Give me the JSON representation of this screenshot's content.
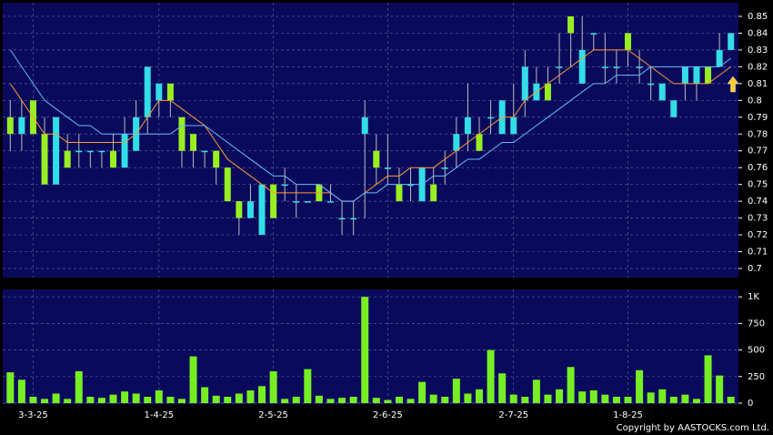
{
  "chart_data": {
    "type": "candlestick",
    "categories": [
      null,
      null,
      "3-3-25",
      null,
      null,
      null,
      null,
      null,
      null,
      null,
      null,
      null,
      null,
      "1-4-25",
      null,
      null,
      null,
      null,
      null,
      null,
      null,
      null,
      null,
      "2-5-25",
      null,
      null,
      null,
      null,
      null,
      null,
      null,
      null,
      null,
      "2-6-25",
      null,
      null,
      null,
      null,
      null,
      null,
      null,
      null,
      null,
      null,
      "2-7-25",
      null,
      null,
      null,
      null,
      null,
      null,
      null,
      null,
      null,
      "1-8-25",
      null,
      null,
      null,
      null,
      null,
      null,
      null,
      null,
      null
    ],
    "open": [
      0.79,
      0.78,
      0.8,
      0.78,
      0.75,
      0.77,
      0.77,
      0.77,
      0.77,
      0.77,
      0.76,
      0.77,
      0.79,
      0.8,
      0.81,
      0.79,
      0.78,
      0.77,
      0.77,
      0.76,
      0.74,
      0.73,
      0.72,
      0.75,
      0.75,
      0.74,
      0.74,
      0.75,
      0.74,
      0.73,
      0.73,
      0.78,
      0.77,
      0.76,
      0.75,
      0.75,
      0.74,
      0.75,
      0.76,
      0.77,
      0.78,
      0.78,
      0.79,
      0.78,
      0.78,
      0.8,
      0.8,
      0.81,
      0.82,
      0.85,
      0.81,
      0.84,
      0.82,
      0.82,
      0.84,
      0.82,
      0.81,
      0.8,
      0.79,
      0.81,
      0.81,
      0.82,
      0.82,
      0.83
    ],
    "high": [
      0.8,
      0.8,
      0.8,
      0.79,
      0.79,
      0.78,
      0.78,
      0.77,
      0.77,
      0.78,
      0.79,
      0.8,
      0.82,
      0.81,
      0.81,
      0.79,
      0.78,
      0.77,
      0.77,
      0.76,
      0.74,
      0.75,
      0.75,
      0.75,
      0.76,
      0.75,
      0.74,
      0.75,
      0.75,
      0.74,
      0.74,
      0.8,
      0.78,
      0.78,
      0.76,
      0.76,
      0.76,
      0.76,
      0.77,
      0.79,
      0.81,
      0.79,
      0.8,
      0.8,
      0.81,
      0.83,
      0.82,
      0.82,
      0.84,
      0.85,
      0.85,
      0.84,
      0.84,
      0.83,
      0.84,
      0.83,
      0.82,
      0.81,
      0.8,
      0.82,
      0.82,
      0.82,
      0.84,
      0.84
    ],
    "low": [
      0.77,
      0.77,
      0.78,
      0.75,
      0.75,
      0.76,
      0.76,
      0.76,
      0.76,
      0.76,
      0.76,
      0.77,
      0.78,
      0.79,
      0.79,
      0.76,
      0.76,
      0.76,
      0.75,
      0.74,
      0.72,
      0.73,
      0.72,
      0.73,
      0.74,
      0.73,
      0.74,
      0.74,
      0.74,
      0.72,
      0.72,
      0.73,
      0.75,
      0.75,
      0.74,
      0.74,
      0.74,
      0.74,
      0.75,
      0.76,
      0.77,
      0.77,
      0.78,
      0.78,
      0.78,
      0.79,
      0.8,
      0.8,
      0.81,
      0.82,
      0.81,
      0.83,
      0.81,
      0.81,
      0.82,
      0.81,
      0.8,
      0.8,
      0.79,
      0.8,
      0.8,
      0.81,
      0.82,
      0.83
    ],
    "close": [
      0.78,
      0.79,
      0.78,
      0.75,
      0.79,
      0.76,
      0.77,
      0.77,
      0.77,
      0.76,
      0.78,
      0.79,
      0.82,
      0.81,
      0.8,
      0.77,
      0.77,
      0.77,
      0.76,
      0.74,
      0.73,
      0.74,
      0.75,
      0.73,
      0.75,
      0.74,
      0.74,
      0.74,
      0.74,
      0.73,
      0.73,
      0.79,
      0.76,
      0.76,
      0.74,
      0.75,
      0.76,
      0.74,
      0.76,
      0.78,
      0.79,
      0.77,
      0.79,
      0.8,
      0.79,
      0.82,
      0.81,
      0.8,
      0.82,
      0.84,
      0.83,
      0.84,
      0.82,
      0.82,
      0.83,
      0.82,
      0.81,
      0.81,
      0.8,
      0.82,
      0.82,
      0.81,
      0.83,
      0.84
    ],
    "up_color": "#33dde8",
    "down_color": "#99ee22",
    "ylim": [
      0.6946,
      0.8581
    ],
    "yticks": [
      0.7,
      0.71,
      0.72,
      0.73,
      0.74,
      0.75,
      0.76,
      0.77,
      0.78,
      0.79,
      0.8,
      0.81,
      0.82,
      0.83,
      0.84,
      0.85
    ],
    "grid": true,
    "moving_averages": [
      {
        "color": "#ff9933",
        "values": [
          0.81,
          0.8,
          0.79,
          0.78,
          0.78,
          0.775,
          0.775,
          0.775,
          0.775,
          0.775,
          0.775,
          0.78,
          0.79,
          0.8,
          0.8,
          0.795,
          0.79,
          0.785,
          0.775,
          0.765,
          0.76,
          0.755,
          0.75,
          0.745,
          0.745,
          0.745,
          0.745,
          0.745,
          0.745,
          0.74,
          0.74,
          0.745,
          0.75,
          0.755,
          0.755,
          0.76,
          0.76,
          0.76,
          0.765,
          0.77,
          0.775,
          0.78,
          0.785,
          0.79,
          0.79,
          0.8,
          0.805,
          0.81,
          0.815,
          0.82,
          0.825,
          0.83,
          0.83,
          0.83,
          0.83,
          0.825,
          0.82,
          0.815,
          0.81,
          0.81,
          0.81,
          0.81,
          0.815,
          0.82
        ]
      },
      {
        "color": "#66bbff",
        "values": [
          0.83,
          0.82,
          0.81,
          0.8,
          0.795,
          0.79,
          0.785,
          0.785,
          0.78,
          0.78,
          0.78,
          0.78,
          0.78,
          0.78,
          0.78,
          0.785,
          0.785,
          0.785,
          0.78,
          0.775,
          0.77,
          0.765,
          0.76,
          0.755,
          0.755,
          0.75,
          0.75,
          0.75,
          0.745,
          0.74,
          0.74,
          0.745,
          0.745,
          0.75,
          0.75,
          0.75,
          0.75,
          0.755,
          0.755,
          0.76,
          0.765,
          0.765,
          0.77,
          0.775,
          0.775,
          0.78,
          0.785,
          0.79,
          0.795,
          0.8,
          0.805,
          0.81,
          0.81,
          0.815,
          0.815,
          0.815,
          0.82,
          0.82,
          0.82,
          0.82,
          0.82,
          0.82,
          0.82,
          0.825
        ]
      }
    ],
    "volume": {
      "color": "#77ee22",
      "values": [
        290,
        220,
        60,
        40,
        90,
        40,
        300,
        60,
        50,
        80,
        110,
        90,
        60,
        120,
        60,
        40,
        440,
        150,
        70,
        60,
        90,
        120,
        160,
        300,
        40,
        60,
        320,
        70,
        40,
        50,
        60,
        1000,
        50,
        30,
        60,
        40,
        200,
        80,
        60,
        230,
        90,
        130,
        500,
        280,
        80,
        60,
        220,
        80,
        130,
        340,
        110,
        120,
        80,
        60,
        60,
        310,
        100,
        130,
        60,
        80,
        40,
        450,
        260,
        60
      ],
      "ylim": [
        0,
        1070
      ],
      "yticks": [
        0,
        250,
        500,
        750,
        {
          "value": 1000,
          "label": "1K"
        }
      ]
    }
  },
  "copyright": "Copyright by AASTOCKS.com Ltd."
}
